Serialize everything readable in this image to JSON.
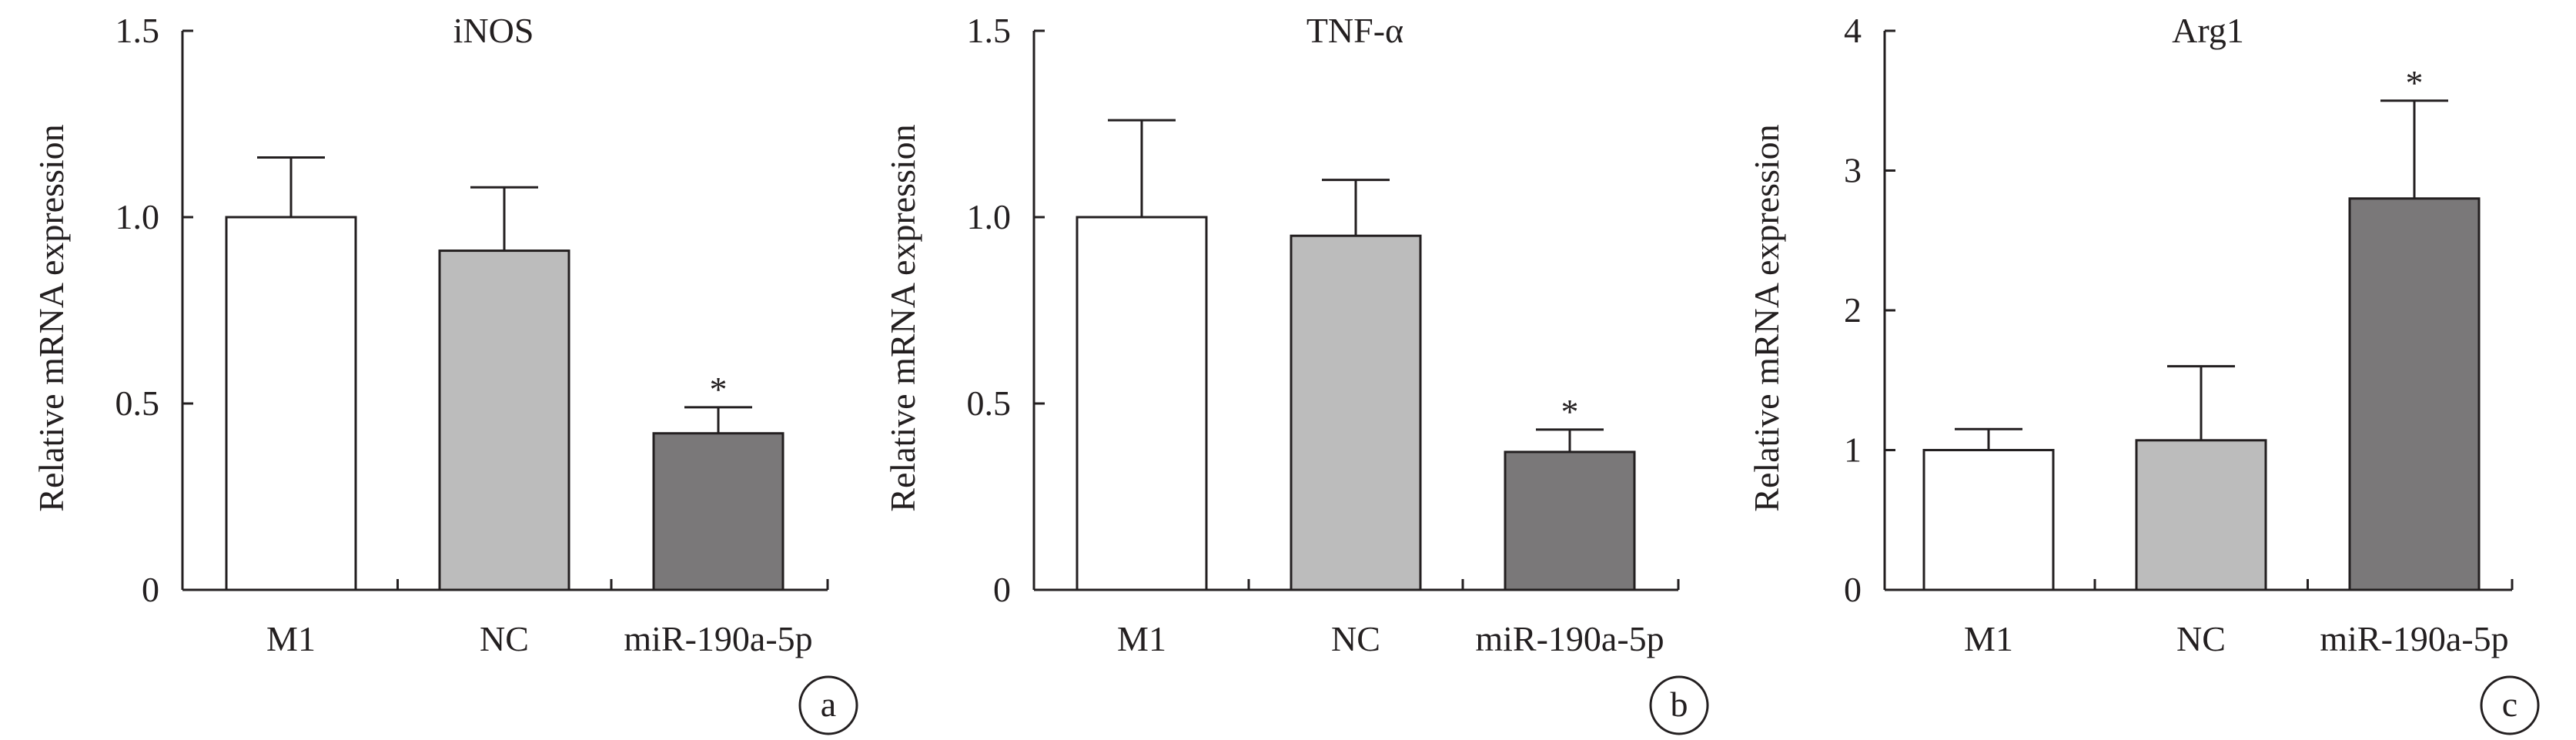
{
  "charts": [
    {
      "panel_label": "a",
      "chart_data": {
        "type": "bar",
        "title": "iNOS",
        "xlabel": "",
        "ylabel": "Relative mRNA expression",
        "categories": [
          "M1",
          "NC",
          "miR-190a-5p"
        ],
        "values": [
          1.0,
          0.91,
          0.42
        ],
        "errors": [
          0.16,
          0.17,
          0.07
        ],
        "significance": [
          "",
          "",
          "*"
        ],
        "bar_colors": [
          "#ffffff",
          "#bcbcbc",
          "#7a7879"
        ],
        "ylim": [
          0,
          1.5
        ],
        "yticks": [
          0,
          0.5,
          1.0,
          1.5
        ],
        "ytick_labels": [
          "0",
          "0.5",
          "1.0",
          "1.5"
        ],
        "grid": false,
        "legend": "none"
      }
    },
    {
      "panel_label": "b",
      "chart_data": {
        "type": "bar",
        "title": "TNF-α",
        "xlabel": "",
        "ylabel": "Relative mRNA expression",
        "categories": [
          "M1",
          "NC",
          "miR-190a-5p"
        ],
        "values": [
          1.0,
          0.95,
          0.37
        ],
        "errors": [
          0.26,
          0.15,
          0.06
        ],
        "significance": [
          "",
          "",
          "*"
        ],
        "bar_colors": [
          "#ffffff",
          "#bcbcbc",
          "#7a7879"
        ],
        "ylim": [
          0,
          1.5
        ],
        "yticks": [
          0,
          0.5,
          1.0,
          1.5
        ],
        "ytick_labels": [
          "0",
          "0.5",
          "1.0",
          "1.5"
        ],
        "grid": false,
        "legend": "none"
      }
    },
    {
      "panel_label": "c",
      "chart_data": {
        "type": "bar",
        "title": "Arg1",
        "xlabel": "",
        "ylabel": "Relative mRNA expression",
        "categories": [
          "M1",
          "NC",
          "miR-190a-5p"
        ],
        "values": [
          1.0,
          1.07,
          2.8
        ],
        "errors": [
          0.15,
          0.53,
          0.7
        ],
        "significance": [
          "",
          "",
          "*"
        ],
        "bar_colors": [
          "#ffffff",
          "#bcbcbc",
          "#7a7879"
        ],
        "ylim": [
          0,
          4
        ],
        "yticks": [
          0,
          1,
          2,
          3,
          4
        ],
        "ytick_labels": [
          "0",
          "1",
          "2",
          "3",
          "4"
        ],
        "grid": false,
        "legend": "none"
      }
    }
  ],
  "colors": {
    "axis": "#231f20",
    "bar_outline": "#231f20"
  }
}
